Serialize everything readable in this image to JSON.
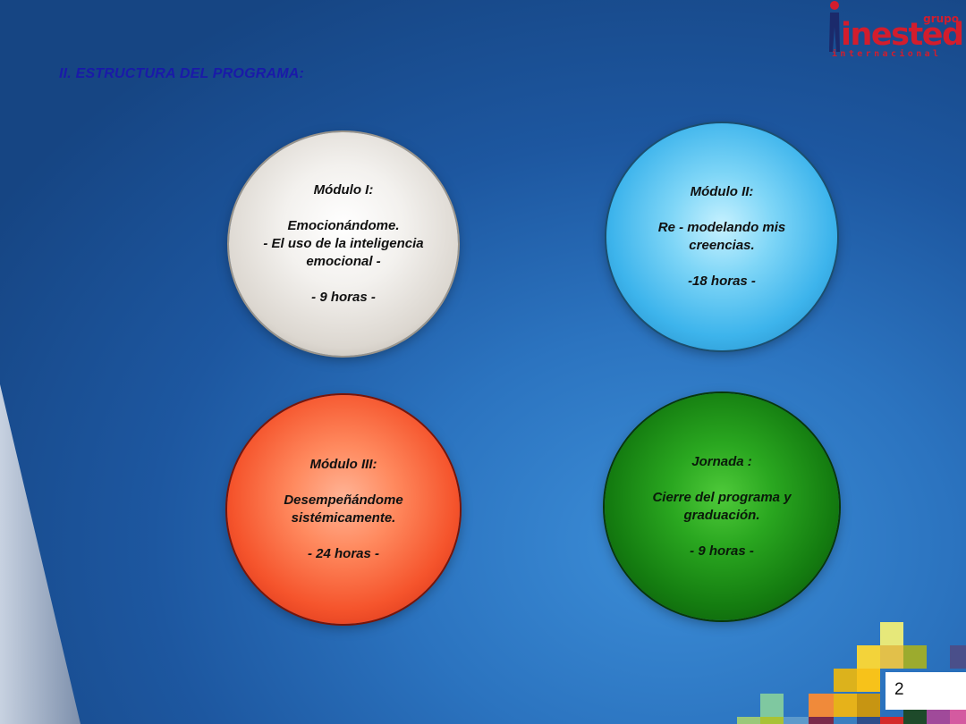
{
  "header": {
    "title": "II.   ESTRUCTURA DEL PROGRAMA:"
  },
  "logo": {
    "top_word": "grupo",
    "main_word": "inested",
    "sub_word": "internacional"
  },
  "modules": [
    {
      "heading": "Módulo I:",
      "body": "Emocionándome.\n- El uso de la inteligencia emocional -",
      "hours": "- 9 horas -"
    },
    {
      "heading": "Módulo II:",
      "body": "Re - modelando mis creencias.",
      "hours": "-18 horas -"
    },
    {
      "heading": "Módulo III:",
      "body": "Desempeñándome sistémicamente.",
      "hours": "- 24 horas -"
    },
    {
      "heading": "Jornada :",
      "body": "Cierre del programa y graduación.",
      "hours": "- 9 horas -"
    }
  ],
  "footer": {
    "page_number": "2"
  },
  "colors": {
    "title": "#1a1aa8",
    "brand_red": "#d21d2d",
    "module_1": "#e8e4de",
    "module_2": "#3db4ec",
    "module_3": "#f5542c",
    "module_4": "#147c10"
  }
}
